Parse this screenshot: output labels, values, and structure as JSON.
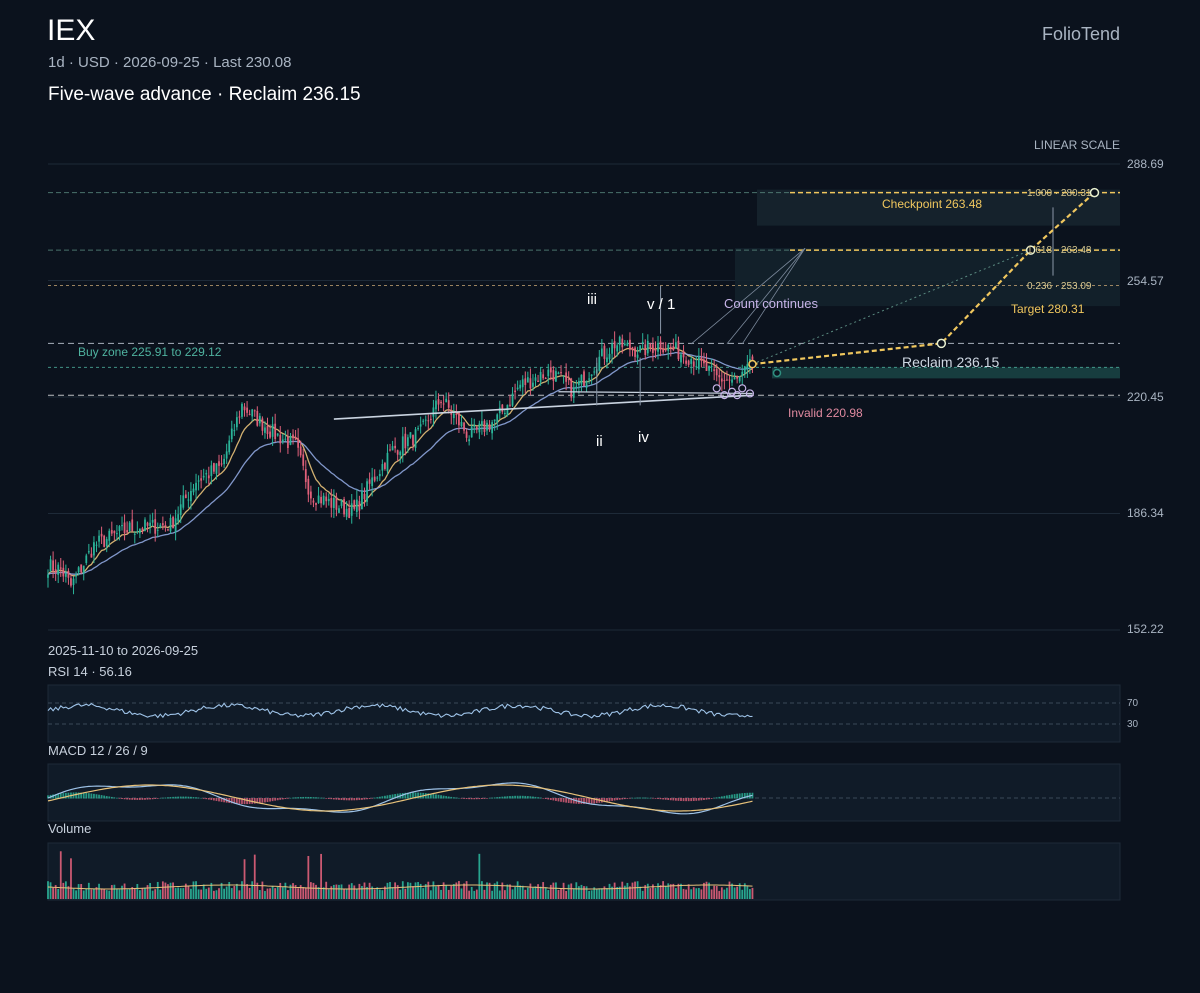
{
  "header": {
    "ticker": "IEX",
    "subtitle": "1d · USD · 2026-09-25 · Last 230.08",
    "headline": "Five-wave advance · Reclaim 236.15",
    "brand": "FolioTend"
  },
  "chart_data": {
    "type": "candlestick",
    "scale_label": "LINEAR SCALE",
    "date_range": "2025-11-10 to 2026-09-25",
    "y_ticks": [
      288.69,
      254.57,
      220.45,
      186.34,
      152.22
    ],
    "ylim": [
      152.22,
      288.69
    ],
    "last": 230.08,
    "levels": {
      "buy_zone": {
        "label": "Buy zone 225.91 to 229.12",
        "low": 225.91,
        "high": 229.12
      },
      "reclaim": {
        "label": "Reclaim 236.15",
        "value": 236.15
      },
      "invalid": {
        "label": "Invalid 220.98",
        "value": 220.98
      },
      "checkpoint": {
        "label": "Checkpoint 263.48",
        "value": 263.48
      },
      "target": {
        "label": "Target 280.31",
        "value": 280.31
      }
    },
    "fib_labels": [
      "1.000 · 280.31",
      "1.618 · 263.48",
      "0.236 · 253.09"
    ],
    "wave_labels": [
      "iii",
      "v / 1",
      "ii",
      "iv"
    ],
    "annotation": "Count continues",
    "price_anchors": [
      {
        "t": 0,
        "p": 171
      },
      {
        "t": 5,
        "p": 170
      },
      {
        "t": 9,
        "p": 165
      },
      {
        "t": 18,
        "p": 177
      },
      {
        "t": 32,
        "p": 182
      },
      {
        "t": 48,
        "p": 183
      },
      {
        "t": 58,
        "p": 196
      },
      {
        "t": 68,
        "p": 200
      },
      {
        "t": 76,
        "p": 218
      },
      {
        "t": 88,
        "p": 210
      },
      {
        "t": 97,
        "p": 206
      },
      {
        "t": 103,
        "p": 192
      },
      {
        "t": 112,
        "p": 189
      },
      {
        "t": 120,
        "p": 187
      },
      {
        "t": 127,
        "p": 196
      },
      {
        "t": 135,
        "p": 205
      },
      {
        "t": 146,
        "p": 210
      },
      {
        "t": 154,
        "p": 220
      },
      {
        "t": 165,
        "p": 209
      },
      {
        "t": 176,
        "p": 214
      },
      {
        "t": 185,
        "p": 224
      },
      {
        "t": 197,
        "p": 228
      },
      {
        "t": 206,
        "p": 222
      },
      {
        "t": 215,
        "p": 231
      },
      {
        "t": 222,
        "p": 236
      },
      {
        "t": 232,
        "p": 234
      },
      {
        "t": 240,
        "p": 236
      },
      {
        "t": 252,
        "p": 232
      },
      {
        "t": 262,
        "p": 226
      },
      {
        "t": 270,
        "p": 225
      },
      {
        "t": 276,
        "p": 230
      }
    ],
    "projection": [
      {
        "t": 276,
        "p": 230.08
      },
      {
        "t": 350,
        "p": 236.15
      },
      {
        "t": 385,
        "p": 263.48
      },
      {
        "t": 410,
        "p": 280.31
      }
    ],
    "rsi": {
      "label": "RSI 14 · 56.16",
      "value": 56.16,
      "levels": [
        70,
        30
      ]
    },
    "macd": {
      "label": "MACD 12 / 26 / 9"
    },
    "volume": {
      "label": "Volume"
    }
  },
  "colors": {
    "up": "#2bb59a",
    "down": "#e0607a",
    "accent": "#f0c75e",
    "ema_fast": "#e8c27a",
    "ema_slow": "#8ea6de",
    "zone": "#2f8f80"
  }
}
